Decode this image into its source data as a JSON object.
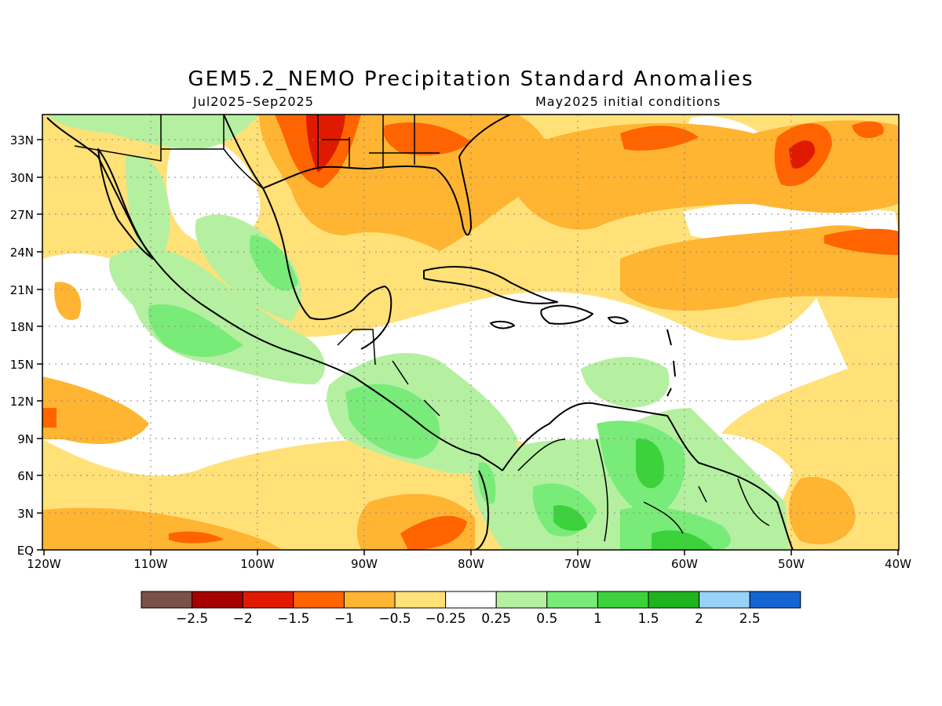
{
  "title": "GEM5.2_NEMO Precipitation Standard Anomalies",
  "subtitle_left": "Jul2025–Sep2025",
  "subtitle_right": "May2025 initial conditions",
  "map": {
    "lon_range": [
      -120,
      -40
    ],
    "lat_range": [
      0,
      35
    ],
    "x_ticks": [
      "120W",
      "110W",
      "100W",
      "90W",
      "80W",
      "70W",
      "60W",
      "50W",
      "40W"
    ],
    "y_ticks": [
      "EQ",
      "3N",
      "6N",
      "9N",
      "12N",
      "15N",
      "18N",
      "21N",
      "24N",
      "27N",
      "30N",
      "33N"
    ],
    "grid": "dotted"
  },
  "colorbar": {
    "colors": [
      "#7a5147",
      "#a60000",
      "#e01a00",
      "#ff6400",
      "#ffb432",
      "#ffe178",
      "#ffffff",
      "#b4f0a0",
      "#78eb78",
      "#3cd23c",
      "#1eb41e",
      "#96d2fa",
      "#1464d2"
    ],
    "labels": [
      "−2.5",
      "−2",
      "−1.5",
      "−1",
      "−0.5",
      "−0.25",
      "0.25",
      "0.5",
      "1",
      "1.5",
      "2",
      "2.5"
    ]
  }
}
